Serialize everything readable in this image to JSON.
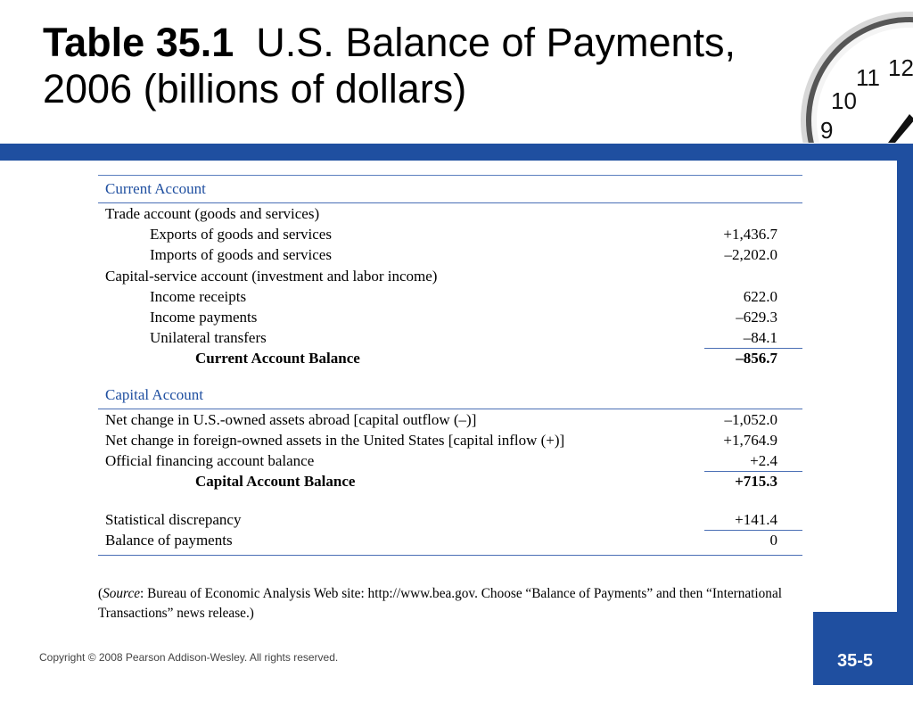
{
  "header": {
    "title_bold": "Table 35.1",
    "title_rest": "U.S. Balance of Payments, 2006 (billions of dollars)"
  },
  "current_account": {
    "heading": "Current Account",
    "rows": [
      {
        "label": "Trade account (goods and services)",
        "value": ""
      },
      {
        "label": "Exports of goods and services",
        "value": "+1,436.7"
      },
      {
        "label": "Imports of goods and services",
        "value": "–2,202.0"
      },
      {
        "label": "Capital-service account (investment and labor income)",
        "value": ""
      },
      {
        "label": "Income receipts",
        "value": "622.0"
      },
      {
        "label": "Income payments",
        "value": "–629.3"
      },
      {
        "label": "Unilateral transfers",
        "value": "–84.1"
      }
    ],
    "balance": {
      "label": "Current Account Balance",
      "value": "–856.7"
    }
  },
  "capital_account": {
    "heading": "Capital Account",
    "rows": [
      {
        "label": "Net change in U.S.-owned assets abroad [capital outflow (–)]",
        "value": "–1,052.0"
      },
      {
        "label": "Net change in foreign-owned assets in the United States [capital inflow (+)]",
        "value": "+1,764.9"
      },
      {
        "label": "Official financing account balance",
        "value": "+2.4"
      }
    ],
    "balance": {
      "label": "Capital Account Balance",
      "value": "+715.3"
    }
  },
  "totals": {
    "discrepancy": {
      "label": "Statistical discrepancy",
      "value": "+141.4"
    },
    "bop": {
      "label": "Balance of payments",
      "value": "0"
    }
  },
  "source": {
    "open": "(",
    "label": "Source",
    "text": ": Bureau of Economic Analysis Web site: http://www.bea.gov. Choose “Balance of Payments” and then “International Transactions” news release.)"
  },
  "footer": {
    "copyright": "Copyright © 2008 Pearson Addison-Wesley. All rights reserved.",
    "page_number": "35-5"
  },
  "clock": {
    "numerals": [
      "12",
      "11",
      "10",
      "9"
    ]
  },
  "colors": {
    "accent": "#1f4fa0"
  }
}
